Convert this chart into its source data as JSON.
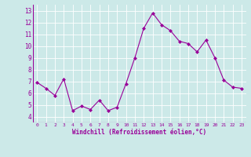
{
  "x": [
    0,
    1,
    2,
    3,
    4,
    5,
    6,
    7,
    8,
    9,
    10,
    11,
    12,
    13,
    14,
    15,
    16,
    17,
    18,
    19,
    20,
    21,
    22,
    23
  ],
  "y": [
    6.9,
    6.4,
    5.8,
    7.2,
    4.5,
    4.9,
    4.6,
    5.4,
    4.5,
    4.8,
    6.8,
    9.0,
    11.5,
    12.8,
    11.8,
    11.3,
    10.4,
    10.2,
    9.5,
    10.5,
    9.0,
    7.1,
    6.5,
    6.4
  ],
  "line_color": "#990099",
  "marker": "D",
  "marker_size": 2.0,
  "bg_color": "#cce9e8",
  "grid_color": "#ffffff",
  "xlabel": "Windchill (Refroidissement éolien,°C)",
  "xlabel_color": "#990099",
  "tick_color": "#990099",
  "ylim": [
    3.5,
    13.5
  ],
  "xlim": [
    -0.5,
    23.5
  ],
  "yticks": [
    4,
    5,
    6,
    7,
    8,
    9,
    10,
    11,
    12,
    13
  ],
  "xtick_labels": [
    "0",
    "1",
    "2",
    "3",
    "4",
    "5",
    "6",
    "7",
    "8",
    "9",
    "10",
    "11",
    "12",
    "13",
    "14",
    "15",
    "16",
    "17",
    "18",
    "19",
    "20",
    "21",
    "22",
    "23"
  ]
}
